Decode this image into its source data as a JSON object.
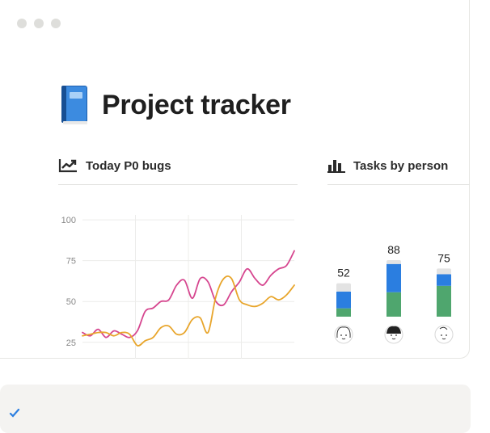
{
  "window": {
    "controls": [
      "close",
      "minimize",
      "maximize"
    ]
  },
  "page": {
    "title": "Project tracker",
    "icon": "book-icon"
  },
  "line_chart_header": {
    "label": "Today P0 bugs",
    "icon": "line-chart-icon"
  },
  "bar_chart_header": {
    "label": "Tasks by person",
    "icon": "bar-chart-icon"
  },
  "colors": {
    "pink": "#d6468f",
    "orange": "#e8a52b",
    "blue": "#2b7ee0",
    "green": "#4fa66e",
    "light": "#e3e3e3",
    "accent": "#2b7ee0"
  },
  "chart_data": [
    {
      "type": "line",
      "title": "Today P0 bugs",
      "yticks": [
        25,
        50,
        75,
        100
      ],
      "ylim": [
        15,
        105
      ],
      "grid": true,
      "series": [
        {
          "values": [
            31,
            29,
            33,
            28,
            32,
            30,
            28,
            32,
            44,
            46,
            50,
            51,
            60,
            63,
            52,
            64,
            62,
            50,
            48,
            56,
            62,
            70,
            64,
            60,
            66,
            70,
            72,
            81
          ]
        },
        {
          "values": [
            29,
            30,
            31,
            31,
            29,
            31,
            30,
            23,
            26,
            28,
            34,
            35,
            30,
            31,
            39,
            40,
            31,
            53,
            64,
            64,
            51,
            48,
            47,
            49,
            53,
            51,
            54,
            60
          ]
        }
      ]
    },
    {
      "type": "bar",
      "title": "Tasks by person",
      "categories": [
        "person-1",
        "person-2",
        "person-3"
      ],
      "totals": [
        52,
        88,
        75
      ],
      "series": [
        {
          "values": [
            13,
            38,
            48
          ]
        },
        {
          "values": [
            26,
            44,
            18
          ]
        },
        {
          "values": [
            13,
            6,
            9
          ]
        }
      ]
    }
  ]
}
